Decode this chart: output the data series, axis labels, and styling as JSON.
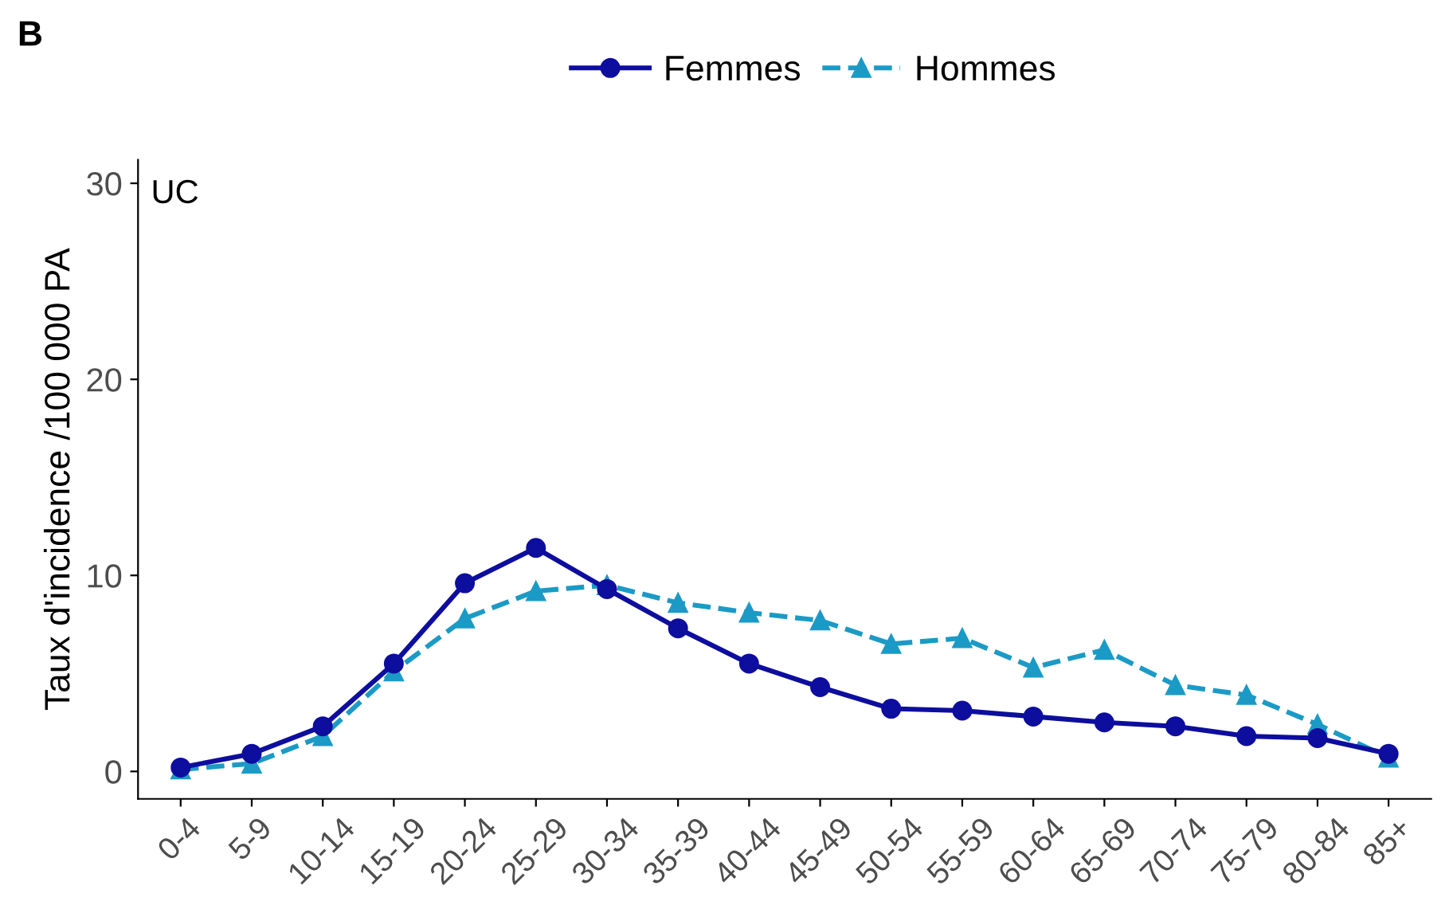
{
  "chart_data": {
    "type": "line",
    "title": "B",
    "ylabel": "Taux d'incidence /100 000 PA",
    "annotations": [
      "UC"
    ],
    "categories": [
      "0-4",
      "5-9",
      "10-14",
      "15-19",
      "20-24",
      "25-29",
      "30-34",
      "35-39",
      "40-44",
      "45-49",
      "50-54",
      "55-59",
      "60-64",
      "65-69",
      "70-74",
      "75-79",
      "80-84",
      "85+"
    ],
    "series": [
      {
        "name": "Femmes",
        "color": "#0d0d9e",
        "marker": "circle",
        "line_style": "solid",
        "values": [
          0.2,
          0.9,
          2.3,
          5.5,
          9.6,
          11.4,
          9.3,
          7.3,
          5.5,
          4.3,
          3.2,
          3.1,
          2.8,
          2.5,
          2.3,
          1.8,
          1.7,
          0.9
        ]
      },
      {
        "name": "Hommes",
        "color": "#1b9ac6",
        "marker": "triangle",
        "line_style": "dashed",
        "values": [
          0.1,
          0.4,
          1.8,
          5.1,
          7.8,
          9.2,
          9.5,
          8.6,
          8.1,
          7.7,
          6.5,
          6.8,
          5.3,
          6.2,
          4.4,
          3.9,
          2.4,
          0.7
        ]
      }
    ],
    "ylim": [
      -1.4,
      31.2
    ],
    "yticks": [
      0,
      10,
      20,
      30
    ],
    "grid": false,
    "legend": "top"
  }
}
